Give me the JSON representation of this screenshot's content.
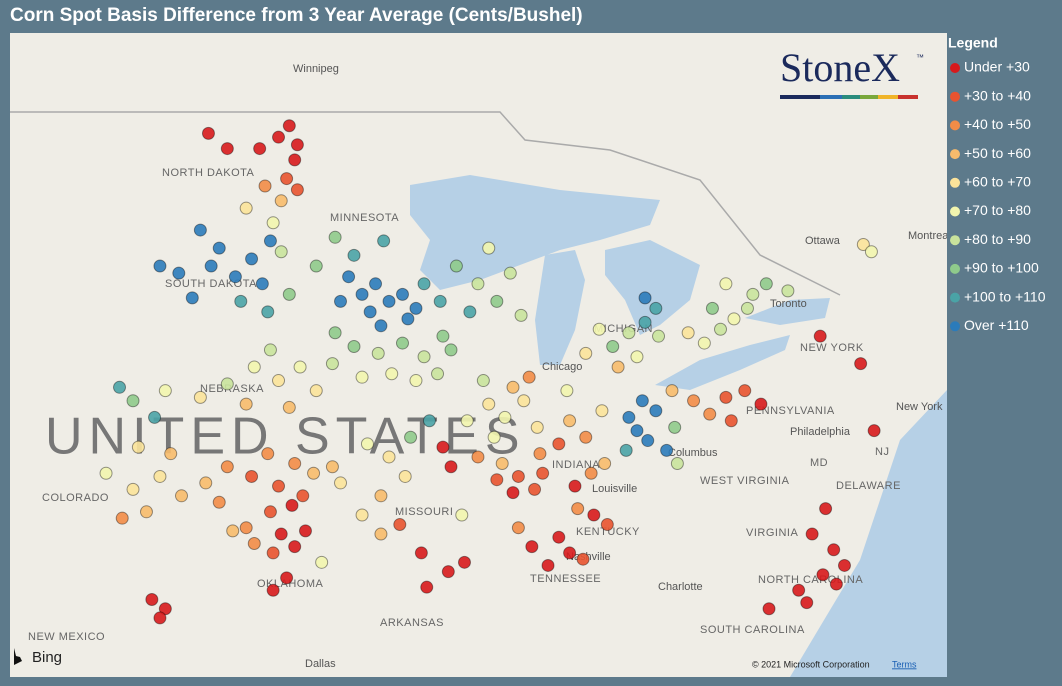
{
  "title": "Corn Spot Basis Difference from 3 Year Average (Cents/Bushel)",
  "legend": {
    "title": "Legend",
    "classes": [
      {
        "label": "Under +30",
        "color": "#d7191c"
      },
      {
        "label": "+30 to +40",
        "color": "#e8532f"
      },
      {
        "label": "+40 to +50",
        "color": "#f28c47"
      },
      {
        "label": "+50 to +60",
        "color": "#f7bb6c"
      },
      {
        "label": "+60 to +70",
        "color": "#fbe39a"
      },
      {
        "label": "+70 to +80",
        "color": "#f2f5ae"
      },
      {
        "label": "+80 to +90",
        "color": "#c9e39c"
      },
      {
        "label": "+90 to +100",
        "color": "#8fca8b"
      },
      {
        "label": "+100 to +110",
        "color": "#4aa3a6"
      },
      {
        "label": "Over +110",
        "color": "#2b7bba"
      }
    ]
  },
  "logo": "StoneX",
  "trademark": "™",
  "map_labels": [
    "Winnipeg",
    "NORTH DAKOTA",
    "MINNESOTA",
    "SOUTH DAKOTA",
    "NEBRASKA",
    "UNITED STATES",
    "COLORADO",
    "MISSOURI",
    "OKLAHOMA",
    "ARKANSAS",
    "NEW MEXICO",
    "Dallas",
    "TENNESSEE",
    "Nashville",
    "KENTUCKY",
    "Louisville",
    "INDIANA",
    "Chicago",
    "MICHIGAN",
    "Toronto",
    "Ottawa",
    "Montreal",
    "NEW YORK",
    "PENNSYLVANIA",
    "Philadelphia",
    "New York",
    "Columbus",
    "WEST VIRGINIA",
    "VIRGINIA",
    "DELAWARE",
    "MD",
    "NJ",
    "Charlotte",
    "NORTH CAROLINA",
    "SOUTH CAROLINA"
  ],
  "bing": "Bing",
  "copyright": "© 2021 Microsoft Corporation",
  "terms": "Terms",
  "points": [
    [
      -97.2,
      48.6,
      0
    ],
    [
      -97.6,
      48.3,
      0
    ],
    [
      -98.3,
      48.0,
      0
    ],
    [
      -97.0,
      47.7,
      0
    ],
    [
      -96.9,
      48.1,
      0
    ],
    [
      -99.5,
      48.0,
      0
    ],
    [
      -100.2,
      48.4,
      0
    ],
    [
      -97.3,
      47.2,
      1
    ],
    [
      -98.1,
      47.0,
      2
    ],
    [
      -97.5,
      46.6,
      3
    ],
    [
      -98.8,
      46.4,
      4
    ],
    [
      -96.9,
      46.9,
      1
    ],
    [
      -97.8,
      46.0,
      5
    ],
    [
      -100.5,
      45.8,
      9
    ],
    [
      -99.8,
      45.3,
      9
    ],
    [
      -100.1,
      44.8,
      9
    ],
    [
      -99.2,
      44.5,
      9
    ],
    [
      -98.6,
      45.0,
      9
    ],
    [
      -98.2,
      44.3,
      9
    ],
    [
      -97.9,
      45.5,
      9
    ],
    [
      -101.3,
      44.6,
      9
    ],
    [
      -100.8,
      43.9,
      9
    ],
    [
      -102.0,
      44.8,
      9
    ],
    [
      -99.0,
      43.8,
      8
    ],
    [
      -98.0,
      43.5,
      8
    ],
    [
      -97.2,
      44.0,
      7
    ],
    [
      -97.5,
      45.2,
      6
    ],
    [
      -95.0,
      44.5,
      9
    ],
    [
      -94.5,
      44.0,
      9
    ],
    [
      -94.0,
      44.3,
      9
    ],
    [
      -93.5,
      43.8,
      9
    ],
    [
      -93.0,
      44.0,
      9
    ],
    [
      -92.5,
      43.6,
      9
    ],
    [
      -94.2,
      43.5,
      9
    ],
    [
      -93.8,
      43.1,
      9
    ],
    [
      -92.8,
      43.3,
      9
    ],
    [
      -95.3,
      43.8,
      9
    ],
    [
      -94.8,
      45.1,
      8
    ],
    [
      -93.7,
      45.5,
      8
    ],
    [
      -95.5,
      45.6,
      7
    ],
    [
      -96.2,
      44.8,
      7
    ],
    [
      -92.2,
      44.3,
      8
    ],
    [
      -91.6,
      43.8,
      8
    ],
    [
      -95.5,
      42.9,
      7
    ],
    [
      -94.8,
      42.5,
      7
    ],
    [
      -93.9,
      42.3,
      6
    ],
    [
      -93.0,
      42.6,
      7
    ],
    [
      -92.2,
      42.2,
      6
    ],
    [
      -91.5,
      42.8,
      7
    ],
    [
      -95.6,
      42.0,
      6
    ],
    [
      -94.5,
      41.6,
      5
    ],
    [
      -93.4,
      41.7,
      5
    ],
    [
      -92.5,
      41.5,
      5
    ],
    [
      -91.7,
      41.7,
      6
    ],
    [
      -91.2,
      42.4,
      7
    ],
    [
      -91.0,
      44.8,
      7
    ],
    [
      -90.2,
      44.3,
      6
    ],
    [
      -89.5,
      43.8,
      7
    ],
    [
      -89.0,
      44.6,
      6
    ],
    [
      -90.5,
      43.5,
      8
    ],
    [
      -88.6,
      43.4,
      6
    ],
    [
      -89.8,
      45.3,
      5
    ],
    [
      -98.5,
      41.9,
      5
    ],
    [
      -97.6,
      41.5,
      4
    ],
    [
      -96.8,
      41.9,
      5
    ],
    [
      -96.2,
      41.2,
      4
    ],
    [
      -99.5,
      41.4,
      6
    ],
    [
      -100.5,
      41.0,
      4
    ],
    [
      -97.9,
      42.4,
      6
    ],
    [
      -98.8,
      40.8,
      3
    ],
    [
      -97.2,
      40.7,
      3
    ],
    [
      -101.8,
      41.2,
      5
    ],
    [
      -103.0,
      40.9,
      7
    ],
    [
      -102.2,
      40.4,
      8
    ],
    [
      -103.5,
      41.3,
      8
    ],
    [
      -98.0,
      39.3,
      2
    ],
    [
      -97.0,
      39.0,
      2
    ],
    [
      -96.3,
      38.7,
      3
    ],
    [
      -98.6,
      38.6,
      1
    ],
    [
      -99.5,
      38.9,
      2
    ],
    [
      -100.3,
      38.4,
      3
    ],
    [
      -97.6,
      38.3,
      1
    ],
    [
      -97.1,
      37.7,
      0
    ],
    [
      -97.9,
      37.5,
      1
    ],
    [
      -96.7,
      38.0,
      1
    ],
    [
      -95.6,
      38.9,
      3
    ],
    [
      -95.3,
      38.4,
      4
    ],
    [
      -99.8,
      37.8,
      2
    ],
    [
      -101.2,
      38.0,
      3
    ],
    [
      -102.0,
      38.6,
      4
    ],
    [
      -101.6,
      39.3,
      3
    ],
    [
      -97.5,
      36.8,
      0
    ],
    [
      -97.0,
      36.4,
      0
    ],
    [
      -96.6,
      36.9,
      0
    ],
    [
      -97.8,
      36.2,
      1
    ],
    [
      -98.5,
      36.5,
      2
    ],
    [
      -99.3,
      36.9,
      3
    ],
    [
      -98.8,
      37.0,
      2
    ],
    [
      -97.3,
      35.4,
      0
    ],
    [
      -96.0,
      35.9,
      5
    ],
    [
      -102.3,
      34.7,
      0
    ],
    [
      -101.8,
      34.4,
      0
    ],
    [
      -102.0,
      34.1,
      0
    ],
    [
      -97.8,
      35.0,
      0
    ],
    [
      -103.0,
      38.2,
      4
    ],
    [
      -102.5,
      37.5,
      3
    ],
    [
      -103.4,
      37.3,
      2
    ],
    [
      -104.0,
      38.7,
      5
    ],
    [
      -102.8,
      39.5,
      4
    ],
    [
      -94.3,
      39.6,
      5
    ],
    [
      -93.5,
      39.2,
      4
    ],
    [
      -92.7,
      39.8,
      7
    ],
    [
      -92.0,
      40.3,
      8
    ],
    [
      -91.5,
      39.5,
      0
    ],
    [
      -92.9,
      38.6,
      4
    ],
    [
      -93.8,
      38.0,
      3
    ],
    [
      -91.2,
      38.9,
      0
    ],
    [
      -94.5,
      37.4,
      4
    ],
    [
      -93.1,
      37.1,
      1
    ],
    [
      -92.3,
      36.2,
      0
    ],
    [
      -90.8,
      37.4,
      5
    ],
    [
      -93.8,
      36.8,
      3
    ],
    [
      -92.1,
      35.1,
      0
    ],
    [
      -91.3,
      35.6,
      0
    ],
    [
      -90.7,
      35.9,
      0
    ],
    [
      -90.6,
      40.3,
      5
    ],
    [
      -89.8,
      40.8,
      4
    ],
    [
      -89.2,
      40.4,
      5
    ],
    [
      -88.5,
      40.9,
      4
    ],
    [
      -88.0,
      40.1,
      4
    ],
    [
      -89.6,
      39.8,
      5
    ],
    [
      -90.0,
      41.5,
      6
    ],
    [
      -88.9,
      41.3,
      3
    ],
    [
      -88.3,
      41.6,
      2
    ],
    [
      -87.9,
      39.3,
      2
    ],
    [
      -89.3,
      39.0,
      3
    ],
    [
      -88.7,
      38.6,
      1
    ],
    [
      -88.1,
      38.2,
      1
    ],
    [
      -88.9,
      38.1,
      0
    ],
    [
      -89.5,
      38.5,
      1
    ],
    [
      -87.8,
      38.7,
      1
    ],
    [
      -90.2,
      39.2,
      2
    ],
    [
      -86.8,
      40.3,
      3
    ],
    [
      -86.2,
      39.8,
      2
    ],
    [
      -87.2,
      39.6,
      1
    ],
    [
      -85.6,
      40.6,
      4
    ],
    [
      -86.9,
      41.2,
      5
    ],
    [
      -86.0,
      38.7,
      2
    ],
    [
      -86.6,
      38.3,
      0
    ],
    [
      -85.5,
      39.0,
      3
    ],
    [
      -84.6,
      40.4,
      9
    ],
    [
      -84.3,
      40.0,
      9
    ],
    [
      -83.9,
      39.7,
      9
    ],
    [
      -83.6,
      40.6,
      9
    ],
    [
      -84.1,
      40.9,
      9
    ],
    [
      -83.2,
      39.4,
      9
    ],
    [
      -84.7,
      39.4,
      8
    ],
    [
      -82.9,
      40.1,
      7
    ],
    [
      -83.0,
      41.2,
      3
    ],
    [
      -82.2,
      40.9,
      2
    ],
    [
      -81.6,
      40.5,
      2
    ],
    [
      -81.0,
      41.0,
      1
    ],
    [
      -80.3,
      41.2,
      1
    ],
    [
      -79.7,
      40.8,
      0
    ],
    [
      -80.8,
      40.3,
      1
    ],
    [
      -82.8,
      39.0,
      6
    ],
    [
      -85.2,
      42.5,
      7
    ],
    [
      -84.6,
      42.9,
      6
    ],
    [
      -84.0,
      43.2,
      8
    ],
    [
      -83.5,
      42.8,
      6
    ],
    [
      -85.7,
      43.0,
      5
    ],
    [
      -84.3,
      42.2,
      5
    ],
    [
      -83.6,
      43.6,
      8
    ],
    [
      -86.2,
      42.3,
      4
    ],
    [
      -85.0,
      41.9,
      3
    ],
    [
      -84.0,
      43.9,
      9
    ],
    [
      -81.8,
      42.6,
      5
    ],
    [
      -81.2,
      43.0,
      6
    ],
    [
      -80.7,
      43.3,
      5
    ],
    [
      -80.2,
      43.6,
      6
    ],
    [
      -81.5,
      43.6,
      7
    ],
    [
      -80.0,
      44.0,
      6
    ],
    [
      -79.5,
      44.3,
      7
    ],
    [
      -78.7,
      44.1,
      6
    ],
    [
      -81.0,
      44.3,
      5
    ],
    [
      -82.4,
      42.9,
      4
    ],
    [
      -75.9,
      45.4,
      4
    ],
    [
      -75.6,
      45.2,
      5
    ],
    [
      -77.5,
      42.8,
      0
    ],
    [
      -76.0,
      42.0,
      0
    ],
    [
      -75.5,
      40.0,
      0
    ],
    [
      -87.2,
      36.7,
      0
    ],
    [
      -86.8,
      36.2,
      0
    ],
    [
      -87.6,
      35.8,
      0
    ],
    [
      -86.3,
      36.0,
      1
    ],
    [
      -88.2,
      36.4,
      0
    ],
    [
      -88.7,
      37.0,
      2
    ],
    [
      -85.9,
      37.4,
      0
    ],
    [
      -85.4,
      37.1,
      1
    ],
    [
      -86.5,
      37.6,
      2
    ],
    [
      -77.0,
      36.3,
      0
    ],
    [
      -76.6,
      35.8,
      0
    ],
    [
      -77.4,
      35.5,
      0
    ],
    [
      -76.9,
      35.2,
      0
    ],
    [
      -78.3,
      35.0,
      0
    ],
    [
      -79.4,
      34.4,
      0
    ],
    [
      -78.0,
      34.6,
      0
    ],
    [
      -77.3,
      37.6,
      0
    ],
    [
      -77.8,
      36.8,
      0
    ]
  ]
}
